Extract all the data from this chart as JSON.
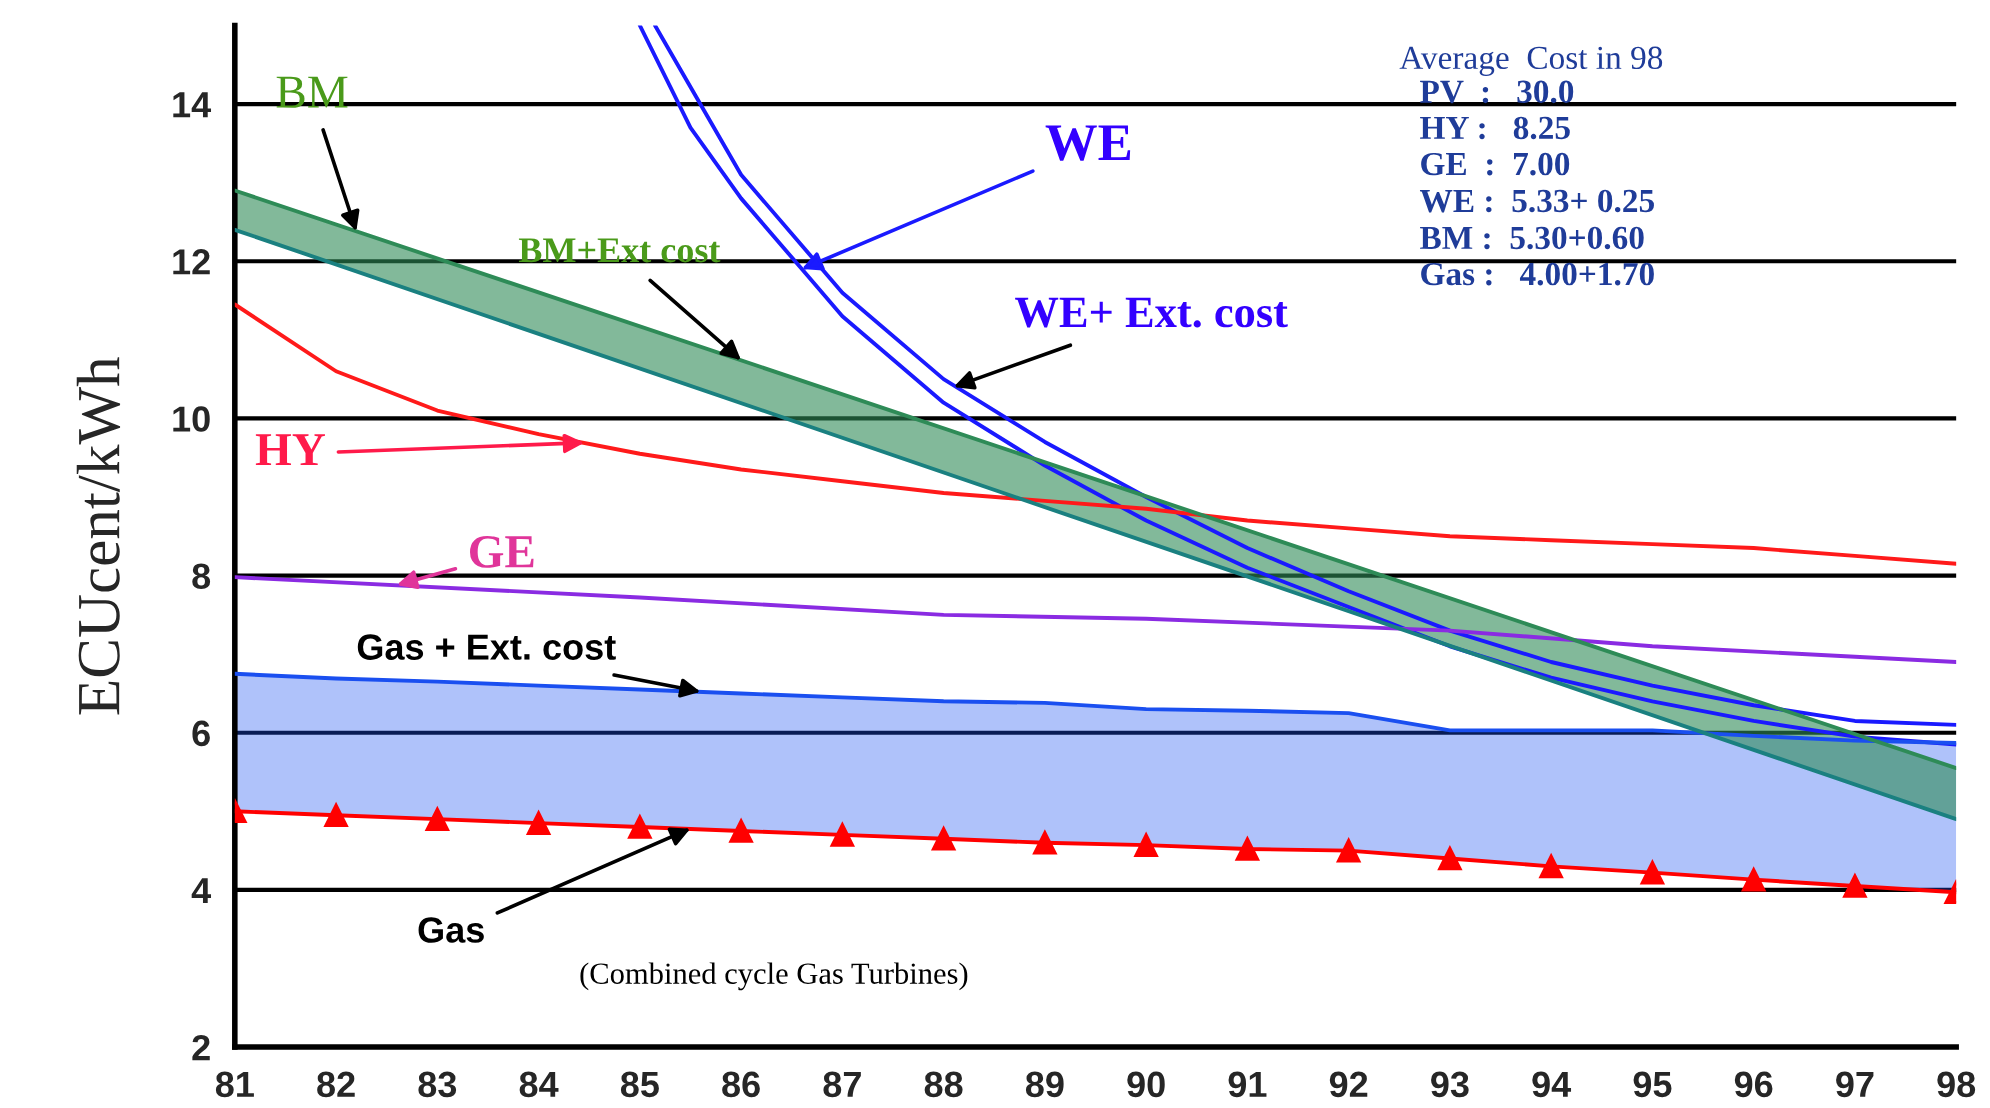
{
  "chart_data": {
    "type": "line",
    "ylabel": "ECUcent/kWh",
    "xlim": [
      81,
      98
    ],
    "xticks": [
      81,
      82,
      83,
      84,
      85,
      86,
      87,
      88,
      89,
      90,
      91,
      92,
      93,
      94,
      95,
      96,
      97,
      98
    ],
    "ylim": [
      2,
      15
    ],
    "yticks": [
      2,
      4,
      6,
      8,
      10,
      12,
      14
    ],
    "grid": "y",
    "legend": false,
    "series": [
      {
        "color": "#1a1aff",
        "x": [
          85.0,
          85.5,
          86,
          86.6,
          87,
          88,
          89,
          90,
          91,
          92,
          93,
          94,
          95,
          96,
          97,
          98
        ],
        "values": [
          15.0,
          13.7,
          12.8,
          11.9,
          11.3,
          10.2,
          9.4,
          8.7,
          8.1,
          7.6,
          7.1,
          6.7,
          6.4,
          6.15,
          5.95,
          5.85
        ]
      },
      {
        "color": "#1a1aff",
        "x": [
          85.15,
          86,
          87,
          88,
          89,
          90,
          91,
          92,
          93,
          94,
          95,
          96,
          97,
          98
        ],
        "values": [
          15.0,
          13.1,
          11.6,
          10.5,
          9.7,
          9.0,
          8.35,
          7.8,
          7.3,
          6.9,
          6.6,
          6.35,
          6.15,
          6.1
        ]
      },
      {
        "color": "#ff1a1a",
        "x": [
          81,
          82,
          83,
          84,
          85,
          86,
          87,
          88,
          89,
          90,
          91,
          92,
          93,
          94,
          95,
          96,
          97,
          98
        ],
        "values": [
          11.45,
          10.6,
          10.1,
          9.8,
          9.55,
          9.35,
          9.2,
          9.05,
          8.95,
          8.85,
          8.7,
          8.6,
          8.5,
          8.45,
          8.4,
          8.35,
          8.25,
          8.15
        ]
      },
      {
        "color": "#8a2be2",
        "x": [
          81,
          85,
          88,
          90,
          93,
          95,
          98
        ],
        "values": [
          7.98,
          7.72,
          7.5,
          7.45,
          7.3,
          7.1,
          6.9
        ]
      },
      {
        "color": "#1a4ff0",
        "x": [
          81,
          82,
          83,
          84,
          85,
          86,
          87,
          88,
          89,
          90,
          91,
          92,
          93,
          94,
          95,
          96,
          97,
          98
        ],
        "values": [
          6.75,
          6.69,
          6.65,
          6.6,
          6.55,
          6.5,
          6.45,
          6.4,
          6.38,
          6.3,
          6.28,
          6.25,
          6.03,
          6.03,
          6.03,
          5.96,
          5.9,
          5.87
        ],
        "lower": [
          5.0,
          4.95,
          4.9,
          4.85,
          4.8,
          4.75,
          4.7,
          4.65,
          4.6,
          4.57,
          4.52,
          4.5,
          4.4,
          4.3,
          4.22,
          4.13,
          4.05,
          3.97
        ],
        "upper": [
          6.75,
          6.69,
          6.65,
          6.6,
          6.55,
          6.5,
          6.45,
          6.4,
          6.38,
          6.3,
          6.28,
          6.25,
          6.03,
          6.03,
          6.03,
          5.96,
          5.9,
          5.87
        ]
      },
      {
        "color": "#ff0000",
        "marker": "triangle",
        "x": [
          81,
          82,
          83,
          84,
          85,
          86,
          87,
          88,
          89,
          90,
          91,
          92,
          93,
          94,
          95,
          96,
          97,
          98
        ],
        "values": [
          5.0,
          4.95,
          4.9,
          4.85,
          4.8,
          4.75,
          4.7,
          4.65,
          4.6,
          4.57,
          4.52,
          4.5,
          4.4,
          4.3,
          4.22,
          4.13,
          4.05,
          3.97
        ]
      },
      {
        "color": "#2e8b57",
        "x": [
          81,
          98
        ],
        "values": [
          12.9,
          5.55
        ],
        "lower": [
          12.4,
          4.9
        ],
        "upper": [
          12.9,
          5.55
        ]
      },
      {
        "color": "#1a8080",
        "x": [
          81,
          98
        ],
        "values": [
          12.4,
          4.9
        ]
      }
    ],
    "annotations": [
      {
        "text": "BM",
        "x": 82.2,
        "y": 12.38
      },
      {
        "text": "BM+Ext cost",
        "x": 86.0,
        "y": 10.74
      },
      {
        "text": "WE",
        "x": 86.6,
        "y": 11.9
      },
      {
        "text": "WE+ Ext. cost",
        "x": 88.1,
        "y": 10.4
      },
      {
        "text": "HY",
        "x": 84.45,
        "y": 9.69
      },
      {
        "text": "GE",
        "x": 82.6,
        "y": 7.88
      },
      {
        "text": "Gas + Ext. cost",
        "x": 85.6,
        "y": 6.52
      },
      {
        "text": "Gas",
        "x": 85.5,
        "y": 4.78
      },
      "(Combined cycle Gas Turbines)",
      "Average  Cost in 98",
      "PV  :   30.0",
      "HY :   8.25",
      "GE  :  7.00",
      "WE :  5.33+ 0.25",
      "BM :  5.30+0.60",
      "Gas :   4.00+1.70"
    ]
  }
}
